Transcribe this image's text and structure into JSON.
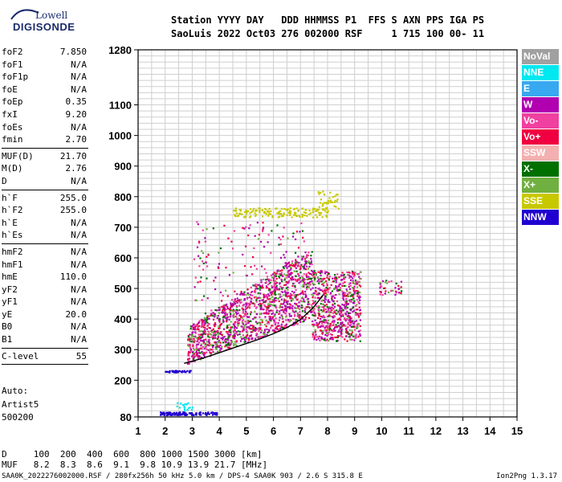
{
  "logo": {
    "line1": "Lowell",
    "line2": "DIGISONDE"
  },
  "header": {
    "line1": "Station YYYY DAY   DDD HHMMSS P1  FFS S AXN PPS IGA PS",
    "line2": "SaoLuis 2022 Oct03 276 002000 RSF     1 715 100 00- 11"
  },
  "params": [
    {
      "label": "foF2",
      "value": "7.850"
    },
    {
      "label": "foF1",
      "value": "N/A"
    },
    {
      "label": "foF1p",
      "value": "N/A"
    },
    {
      "label": "foE",
      "value": "N/A"
    },
    {
      "label": "foEp",
      "value": "0.35"
    },
    {
      "label": "fxI",
      "value": "9.20"
    },
    {
      "label": "foEs",
      "value": "N/A"
    },
    {
      "label": "fmin",
      "value": "2.70",
      "sep_after": true
    },
    {
      "label": "MUF(D)",
      "value": "21.70"
    },
    {
      "label": "M(D)",
      "value": "2.76"
    },
    {
      "label": "D",
      "value": "N/A",
      "sep_after": true
    },
    {
      "label": "h`F",
      "value": "255.0"
    },
    {
      "label": "h`F2",
      "value": "255.0"
    },
    {
      "label": "h`E",
      "value": "N/A"
    },
    {
      "label": "h`Es",
      "value": "N/A",
      "sep_after": true
    },
    {
      "label": "hmF2",
      "value": "N/A"
    },
    {
      "label": "hmF1",
      "value": "N/A"
    },
    {
      "label": "hmE",
      "value": "110.0"
    },
    {
      "label": "yF2",
      "value": "N/A"
    },
    {
      "label": "yF1",
      "value": "N/A"
    },
    {
      "label": "yE",
      "value": "20.0"
    },
    {
      "label": "B0",
      "value": "N/A"
    },
    {
      "label": "B1",
      "value": "N/A",
      "sep_after": true
    },
    {
      "label": "C-level",
      "value": "55",
      "sep_after": true
    }
  ],
  "autoscale": {
    "line1": "Auto:",
    "line2": "Artist5",
    "line3": "500200"
  },
  "legend": [
    {
      "label": "NoVal",
      "color": "#a0a0a0"
    },
    {
      "label": "NNE",
      "color": "#00e8f0"
    },
    {
      "label": "E",
      "color": "#38a8f0"
    },
    {
      "label": "W",
      "color": "#b000b0"
    },
    {
      "label": "Vo-",
      "color": "#f040a0"
    },
    {
      "label": "Vo+",
      "color": "#f00040"
    },
    {
      "label": "SSW",
      "color": "#f4b0b0"
    },
    {
      "label": "X-",
      "color": "#007000"
    },
    {
      "label": "X+",
      "color": "#70b040"
    },
    {
      "label": "SSE",
      "color": "#c8c800"
    },
    {
      "label": "NNW",
      "color": "#2000d0"
    }
  ],
  "muf_table": {
    "line1": "D     100  200  400  600  800 1000 1500 3000 [km]",
    "line2": "MUF   8.2  8.3  8.6  9.1  9.8 10.9 13.9 21.7 [MHz]"
  },
  "footer": "SAA0K_2022276002000.RSF / 280fx256h 50 kHz 5.0 km / DPS-4 SAA0K 903 / 2.6 S 315.8 E",
  "version": "Ion2Png 1.3.17",
  "chart_data": {
    "type": "scatter",
    "xlabel": "",
    "ylabel": "",
    "xlim": [
      1,
      15
    ],
    "ylim": [
      80,
      1280
    ],
    "x_ticks": [
      "1",
      "2",
      "3",
      "4",
      "5",
      "6",
      "7",
      "8",
      "9",
      "10",
      "11",
      "12",
      "13",
      "14",
      "15"
    ],
    "y_ticks": [
      "80",
      "200",
      "300",
      "400",
      "500",
      "600",
      "700",
      "800",
      "900",
      "1000",
      "1100",
      "1280"
    ],
    "y_tick_values": [
      80,
      200,
      300,
      400,
      500,
      600,
      700,
      800,
      900,
      1000,
      1100,
      1280
    ],
    "grid": true,
    "trace": {
      "x": [
        2.7,
        3.0,
        3.5,
        4.0,
        4.5,
        5.0,
        5.5,
        6.0,
        6.5,
        7.0,
        7.5,
        7.85
      ],
      "y": [
        255,
        262,
        275,
        290,
        305,
        320,
        335,
        352,
        372,
        398,
        440,
        480
      ]
    }
  }
}
